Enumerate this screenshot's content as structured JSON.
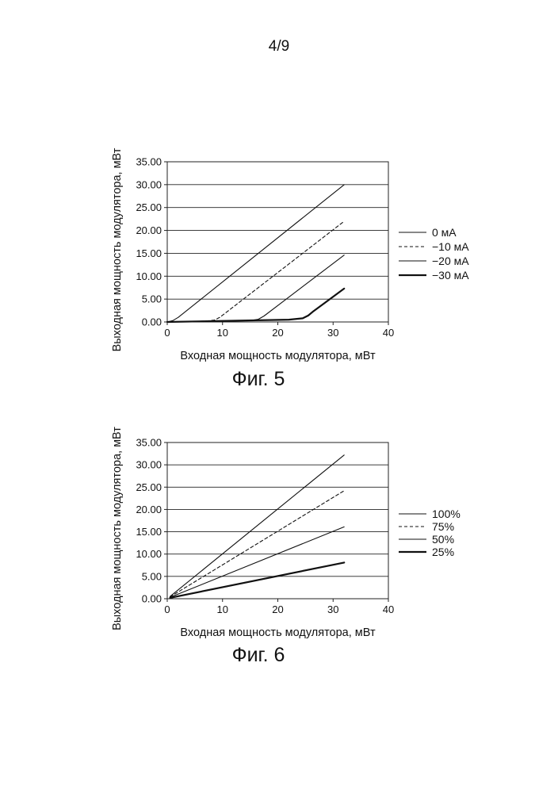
{
  "page_number": "4/9",
  "chart_data": [
    {
      "type": "line",
      "caption": "Фиг. 5",
      "xlabel": "Входная мощность модулятора, мВт",
      "ylabel": "Выходная мощность модулятора, мВт",
      "xlim": [
        0,
        40
      ],
      "ylim": [
        0,
        35
      ],
      "xticks": [
        "0",
        "10",
        "20",
        "30",
        "40"
      ],
      "yticks": [
        "0.00",
        "5.00",
        "10.00",
        "15.00",
        "20.00",
        "25.00",
        "30.00",
        "35.00"
      ],
      "grid": "horizontal",
      "legend_position": "right",
      "series": [
        {
          "name": "0 мА",
          "style": "thin-solid",
          "x": [
            0,
            1,
            2,
            32
          ],
          "y": [
            0,
            0.3,
            1.0,
            30.0
          ]
        },
        {
          "name": "−10 мА",
          "style": "dashed",
          "x": [
            0,
            7,
            8.5,
            9.5,
            32
          ],
          "y": [
            0,
            0.2,
            0.4,
            1.0,
            22.0
          ]
        },
        {
          "name": "−20 мА",
          "style": "thin-solid",
          "x": [
            0,
            15,
            16.5,
            17.5,
            32
          ],
          "y": [
            0,
            0.3,
            0.6,
            1.3,
            14.6
          ]
        },
        {
          "name": "−30 мА",
          "style": "thick-solid",
          "x": [
            0,
            22,
            24.5,
            25.5,
            26.3,
            32
          ],
          "y": [
            0,
            0.5,
            0.8,
            1.4,
            2.2,
            7.3
          ]
        }
      ]
    },
    {
      "type": "line",
      "caption": "Фиг. 6",
      "xlabel": "Входная мощность модулятора, мВт",
      "ylabel": "Выходная мощность модулятора, мВт",
      "xlim": [
        0,
        40
      ],
      "ylim": [
        0,
        35
      ],
      "xticks": [
        "0",
        "10",
        "20",
        "30",
        "40"
      ],
      "yticks": [
        "0.00",
        "5.00",
        "10.00",
        "15.00",
        "20.00",
        "25.00",
        "30.00",
        "35.00"
      ],
      "grid": "horizontal",
      "legend_position": "right",
      "series": [
        {
          "name": "100%",
          "style": "thin-solid",
          "x": [
            0.5,
            32
          ],
          "y": [
            0.5,
            32.2
          ]
        },
        {
          "name": "75%",
          "style": "dashed",
          "x": [
            0.5,
            32
          ],
          "y": [
            0.4,
            24.2
          ]
        },
        {
          "name": "50%",
          "style": "thin-solid",
          "x": [
            0.5,
            32
          ],
          "y": [
            0.3,
            16.1
          ]
        },
        {
          "name": "25%",
          "style": "thick-solid",
          "x": [
            0.5,
            32
          ],
          "y": [
            0.2,
            8.1
          ]
        }
      ]
    }
  ]
}
